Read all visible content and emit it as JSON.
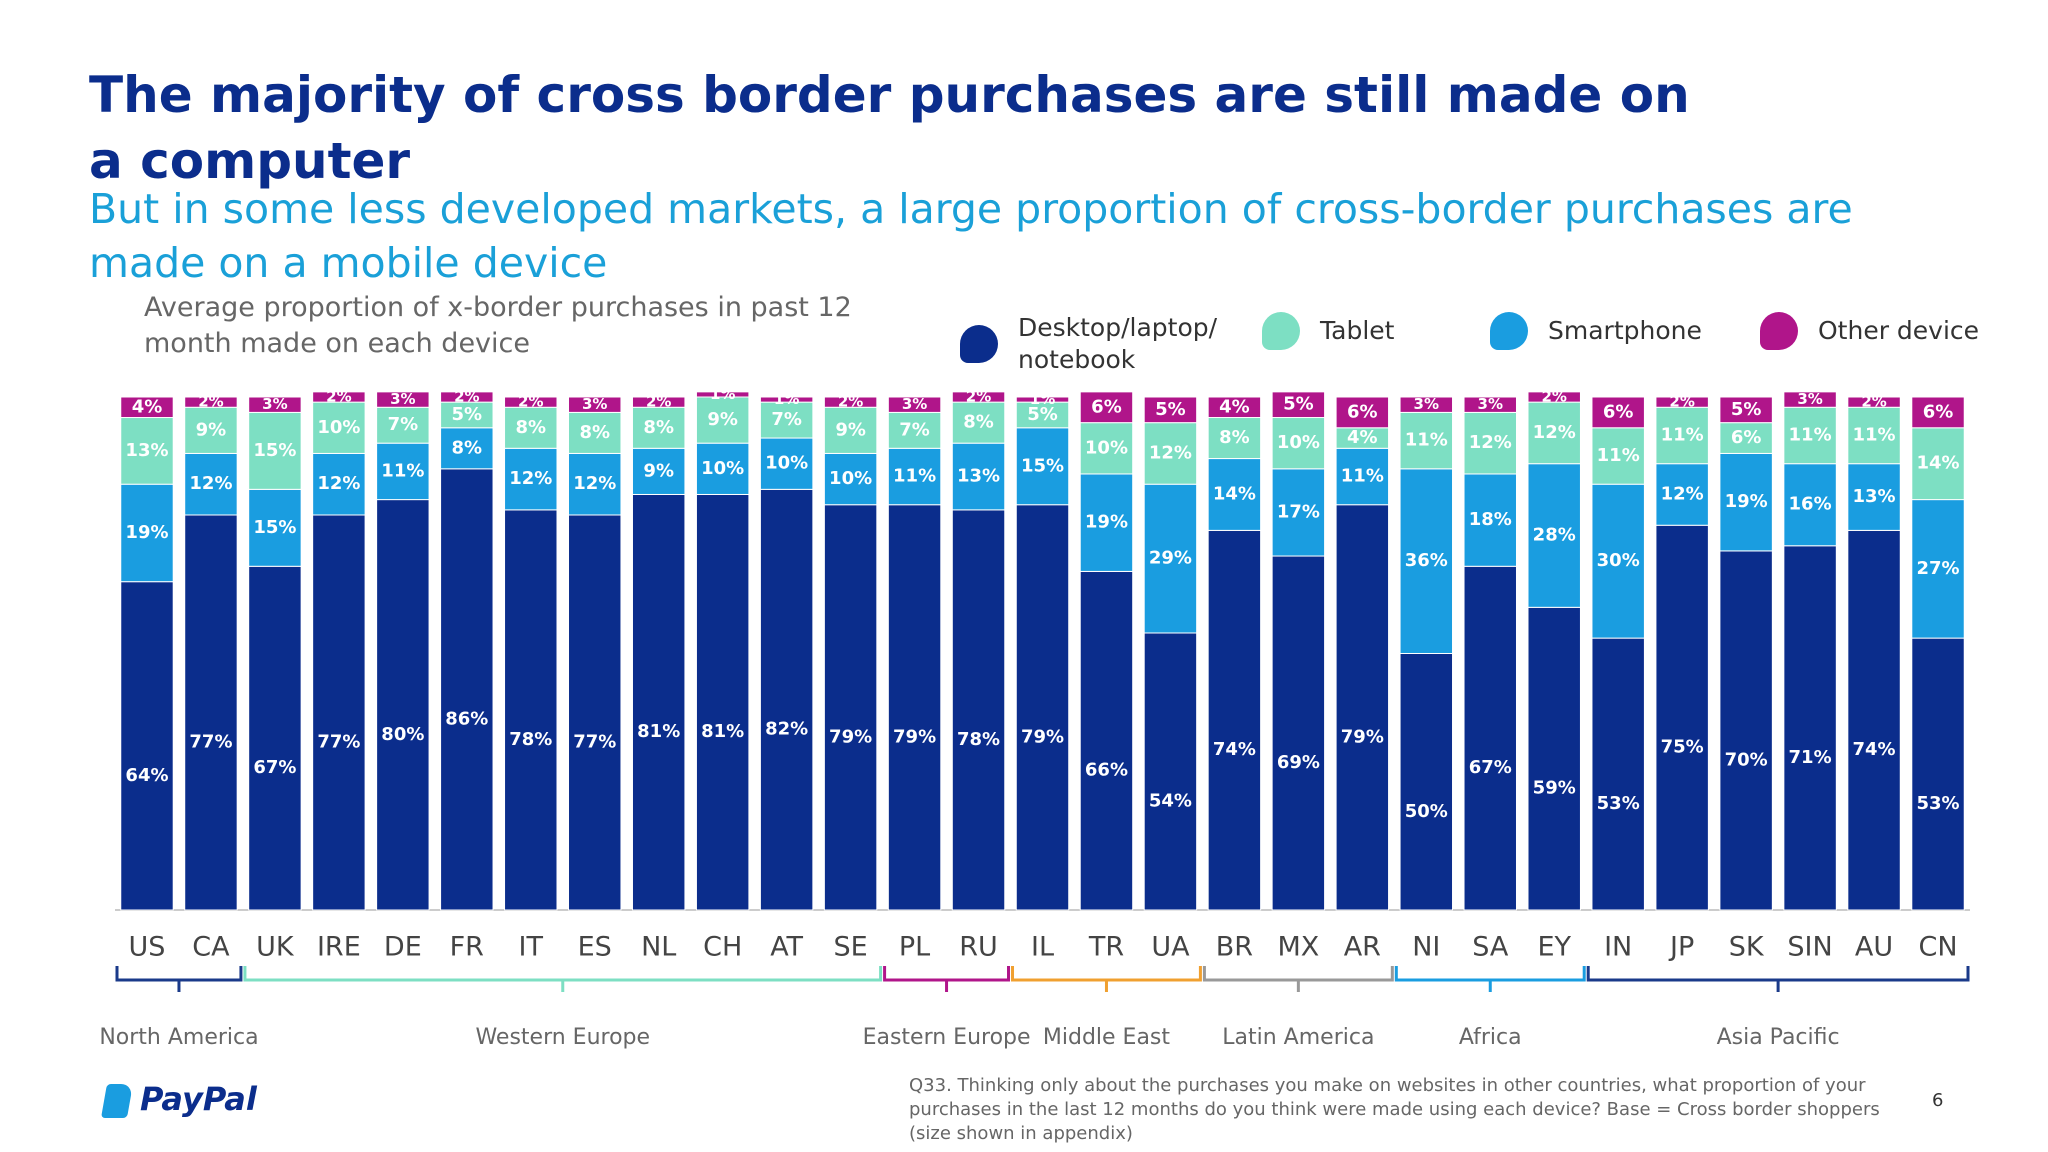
{
  "chart_data": {
    "type": "stacked-bar",
    "title": "The majority of cross border purchases are still made on a computer",
    "subtitle": "But in some less developed markets, a large proportion of cross-border purchases are made on a mobile device",
    "y_label": "Average proportion of x-border purchases in past 12 month made on each device",
    "categories": [
      "US",
      "CA",
      "UK",
      "IRE",
      "DE",
      "FR",
      "IT",
      "ES",
      "NL",
      "CH",
      "AT",
      "SE",
      "PL",
      "RU",
      "IL",
      "TR",
      "UA",
      "BR",
      "MX",
      "AR",
      "NI",
      "SA",
      "EY",
      "IN",
      "JP",
      "SK",
      "SIN",
      "AU",
      "CN"
    ],
    "ylim": [
      0,
      100
    ],
    "series": [
      {
        "name": "Desktop/laptop/notebook",
        "color": "#0b2d8c",
        "values": [
          64,
          77,
          67,
          77,
          80,
          86,
          78,
          77,
          81,
          81,
          82,
          79,
          79,
          78,
          79,
          66,
          54,
          74,
          69,
          79,
          50,
          67,
          59,
          53,
          75,
          70,
          71,
          74,
          53
        ],
        "value_labels": [
          "64%",
          "77%",
          "67%",
          "77%",
          "80%",
          "86%",
          "78%",
          "77%",
          "81%",
          "81%",
          "82%",
          "79%",
          "79%",
          "78%",
          "79%",
          "66%",
          "54%",
          "74%",
          "69%",
          "79%",
          "50%",
          "67%",
          "59%",
          "53%",
          "75%",
          "70%",
          "71%",
          "74%",
          "53%"
        ]
      },
      {
        "name": "Smartphone",
        "color": "#1a9de0",
        "values": [
          19,
          12,
          15,
          12,
          11,
          8,
          12,
          12,
          9,
          10,
          10,
          10,
          11,
          13,
          15,
          19,
          29,
          14,
          17,
          11,
          36,
          18,
          28,
          30,
          12,
          19,
          16,
          13,
          27
        ],
        "value_labels": [
          "19%",
          "12%",
          "15%",
          "12%",
          "11%",
          "8%",
          "12%",
          "12%",
          "9%",
          "10%",
          "10%",
          "10%",
          "11%",
          "13%",
          "15%",
          "19%",
          "29%",
          "14%",
          "17%",
          "11%",
          "36%",
          "18%",
          "28%",
          "30%",
          "12%",
          "19%",
          "16%",
          "13%",
          "27%"
        ]
      },
      {
        "name": "Tablet",
        "color": "#7ddfc3",
        "values": [
          13,
          9,
          15,
          10,
          7,
          5,
          8,
          8,
          8,
          9,
          7,
          9,
          7,
          8,
          5,
          10,
          12,
          8,
          10,
          4,
          11,
          12,
          12,
          11,
          11,
          6,
          11,
          11,
          14
        ],
        "value_labels": [
          "13%",
          "9%",
          "15%",
          "10%",
          "7%",
          "5%",
          "8%",
          "8%",
          "8%",
          "9%",
          "7%",
          "9%",
          "7%",
          "8%",
          "5%",
          "10%",
          "12%",
          "8%",
          "10%",
          "4%",
          "11%",
          "12%",
          "12%",
          "11%",
          "11%",
          "6%",
          "11%",
          "11%",
          "14%"
        ]
      },
      {
        "name": "Other device",
        "color": "#b0158a",
        "values": [
          4,
          2,
          3,
          2,
          3,
          2,
          2,
          3,
          2,
          1,
          1,
          2,
          3,
          2,
          1,
          6,
          5,
          4,
          5,
          6,
          3,
          3,
          2,
          6,
          2,
          5,
          3,
          2,
          6
        ],
        "value_labels": [
          "4%",
          "2%",
          "3%",
          "2%",
          "3%",
          "2%",
          "2%",
          "3%",
          "2%",
          "1%",
          "1%",
          "2%",
          "3%",
          "2%",
          "1%",
          "6%",
          "5%",
          "4%",
          "5%",
          "6%",
          "3%",
          "3%",
          "2%",
          "6%",
          "2%",
          "5%",
          "3%",
          "2%",
          "6%"
        ]
      }
    ],
    "legend_order": [
      0,
      2,
      1,
      3
    ],
    "regions": [
      {
        "name": "North America",
        "span": [
          0,
          1
        ],
        "color": "#1a3a8a"
      },
      {
        "name": "Western Europe",
        "span": [
          2,
          11
        ],
        "color": "#7ddfc3"
      },
      {
        "name": "Eastern Europe",
        "span": [
          12,
          13
        ],
        "color": "#b0158a"
      },
      {
        "name": "Middle East",
        "span": [
          14,
          16
        ],
        "color": "#f0a030"
      },
      {
        "name": "Latin America",
        "span": [
          17,
          19
        ],
        "color": "#999999"
      },
      {
        "name": "Africa",
        "span": [
          20,
          22
        ],
        "color": "#1a9de0"
      },
      {
        "name": "Asia Pacific",
        "span": [
          23,
          28
        ],
        "color": "#1a3a8a"
      }
    ]
  },
  "footer": {
    "logo": "PayPal",
    "note": "Q33. Thinking only about the purchases you make on websites in other countries, what proportion of your purchases in the last 12 months do you think were made using each device? Base = Cross border shoppers (size shown in appendix)",
    "page": "6"
  }
}
